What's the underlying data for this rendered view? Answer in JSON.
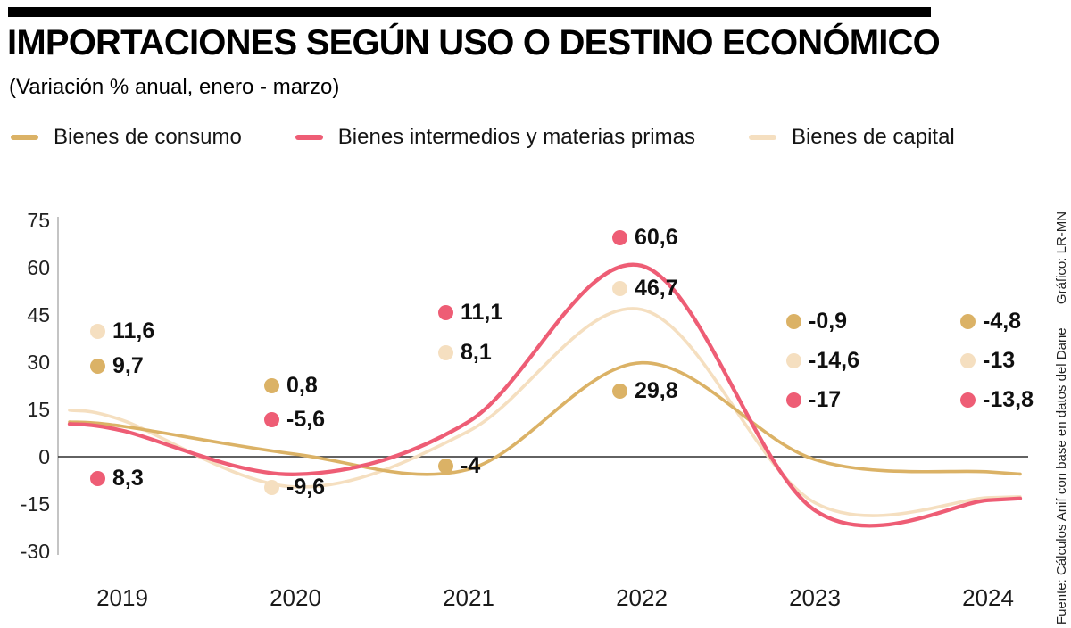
{
  "source": "Fuente: Cálculos Anif con base en datos del Dane",
  "credit": "Gráfico: LR-MN",
  "chart_data": {
    "type": "line",
    "title": "IMPORTACIONES SEGÚN USO O DESTINO ECONÓMICO",
    "subtitle": "(Variación % anual, enero - marzo)",
    "categories": [
      "2019",
      "2020",
      "2021",
      "2022",
      "2023",
      "2024"
    ],
    "y_ticks": [
      75,
      60,
      45,
      30,
      15,
      0,
      -15,
      -30
    ],
    "ylim": [
      -30,
      75
    ],
    "grid": false,
    "legend_position": "top",
    "series": [
      {
        "name": "Bienes de consumo",
        "color": "#DBB266",
        "values": [
          9.7,
          0.8,
          -4,
          29.8,
          -0.9,
          -4.8
        ],
        "labels": [
          "9,7",
          "0,8",
          "-4",
          "29,8",
          "-0,9",
          "-4,8"
        ]
      },
      {
        "name": "Bienes intermedios y materias primas",
        "color": "#EE5D75",
        "values": [
          8.3,
          -5.6,
          11.1,
          60.6,
          -17,
          -13.8
        ],
        "labels": [
          "8,3",
          "-5,6",
          "11,1",
          "60,6",
          "-17",
          "-13,8"
        ]
      },
      {
        "name": "Bienes de capital",
        "color": "#F5DFC0",
        "values": [
          11.6,
          -9.6,
          8.1,
          46.7,
          -14.6,
          -13
        ],
        "labels": [
          "11,6",
          "-9,6",
          "8,1",
          "46,7",
          "-14,6",
          "-13"
        ]
      }
    ]
  }
}
